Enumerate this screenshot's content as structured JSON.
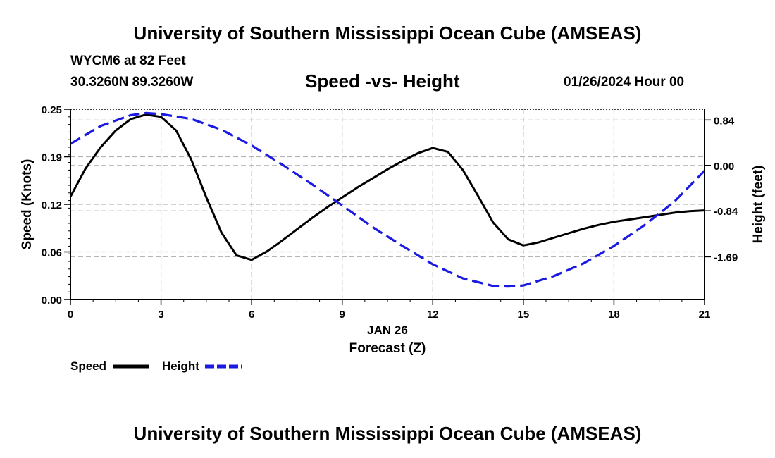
{
  "header": {
    "title": "University of Southern Mississippi Ocean Cube (AMSEAS)",
    "station": "WYCM6 at 82 Feet",
    "coordinates": "30.3260N  89.3260W",
    "subtitle": "Speed -vs- Height",
    "datetime": "01/26/2024 Hour 00"
  },
  "footer": {
    "title": "University of Southern Mississippi Ocean Cube (AMSEAS)"
  },
  "chart_data": {
    "type": "line",
    "title": "Speed -vs- Height",
    "xlabel": "Forecast (Z)",
    "xlabel_date": "JAN 26",
    "ylabel": "Speed (Knots)",
    "y2label": "Height (feet)",
    "xlim": [
      0,
      21
    ],
    "ylim": [
      0,
      0.25
    ],
    "y2lim": [
      -2.48,
      1.04
    ],
    "x_ticks": [
      0,
      3,
      6,
      9,
      12,
      15,
      18,
      21
    ],
    "x_tick_labels": [
      "0",
      "3",
      "6",
      "9",
      "12",
      "15",
      "18",
      "21"
    ],
    "y_ticks": [
      0.0,
      0.0625,
      0.125,
      0.1875,
      0.25
    ],
    "y_tick_labels": [
      "0.00",
      "0.06",
      "0.12",
      "0.19",
      "0.25"
    ],
    "y2_ticks": [
      0.84,
      0.0,
      -0.84,
      -1.69
    ],
    "y2_tick_labels": [
      "0.84",
      "0.00",
      "-0.84",
      "-1.69"
    ],
    "grid": true,
    "series": [
      {
        "name": "Speed",
        "axis": "left",
        "color": "#000000",
        "dash": "solid",
        "x": [
          0,
          0.5,
          1,
          1.5,
          2,
          2.5,
          3,
          3.5,
          4,
          4.5,
          5,
          5.5,
          6,
          6.5,
          7,
          7.5,
          8,
          8.5,
          9,
          9.5,
          10,
          10.5,
          11,
          11.5,
          12,
          12.5,
          13,
          13.5,
          14,
          14.5,
          15,
          15.5,
          16,
          16.5,
          17,
          17.5,
          18,
          18.5,
          19,
          19.5,
          20,
          20.5,
          21
        ],
        "values": [
          0.135,
          0.172,
          0.2,
          0.222,
          0.237,
          0.243,
          0.24,
          0.222,
          0.184,
          0.134,
          0.088,
          0.058,
          0.052,
          0.063,
          0.077,
          0.092,
          0.107,
          0.121,
          0.134,
          0.147,
          0.159,
          0.171,
          0.182,
          0.192,
          0.199,
          0.194,
          0.17,
          0.136,
          0.101,
          0.079,
          0.071,
          0.075,
          0.081,
          0.087,
          0.093,
          0.098,
          0.102,
          0.105,
          0.108,
          0.111,
          0.114,
          0.116,
          0.117
        ]
      },
      {
        "name": "Height",
        "axis": "right",
        "color": "#1a1ae0",
        "dash": "dashed",
        "x": [
          0,
          1,
          2,
          2.5,
          3,
          4,
          5,
          6,
          7,
          8,
          9,
          10,
          11,
          12,
          13,
          14,
          14.5,
          15,
          16,
          17,
          18,
          19,
          20,
          21
        ],
        "values": [
          0.4,
          0.73,
          0.93,
          0.97,
          0.95,
          0.86,
          0.66,
          0.37,
          0.02,
          -0.35,
          -0.74,
          -1.14,
          -1.49,
          -1.83,
          -2.09,
          -2.23,
          -2.24,
          -2.22,
          -2.05,
          -1.81,
          -1.49,
          -1.11,
          -0.67,
          -0.1
        ]
      }
    ],
    "legend": {
      "placement": "bottom-left",
      "entries": [
        {
          "label": "Speed",
          "color": "#000000",
          "style": "solid"
        },
        {
          "label": "Height",
          "color": "#1a1ae0",
          "style": "dashed"
        }
      ]
    }
  }
}
